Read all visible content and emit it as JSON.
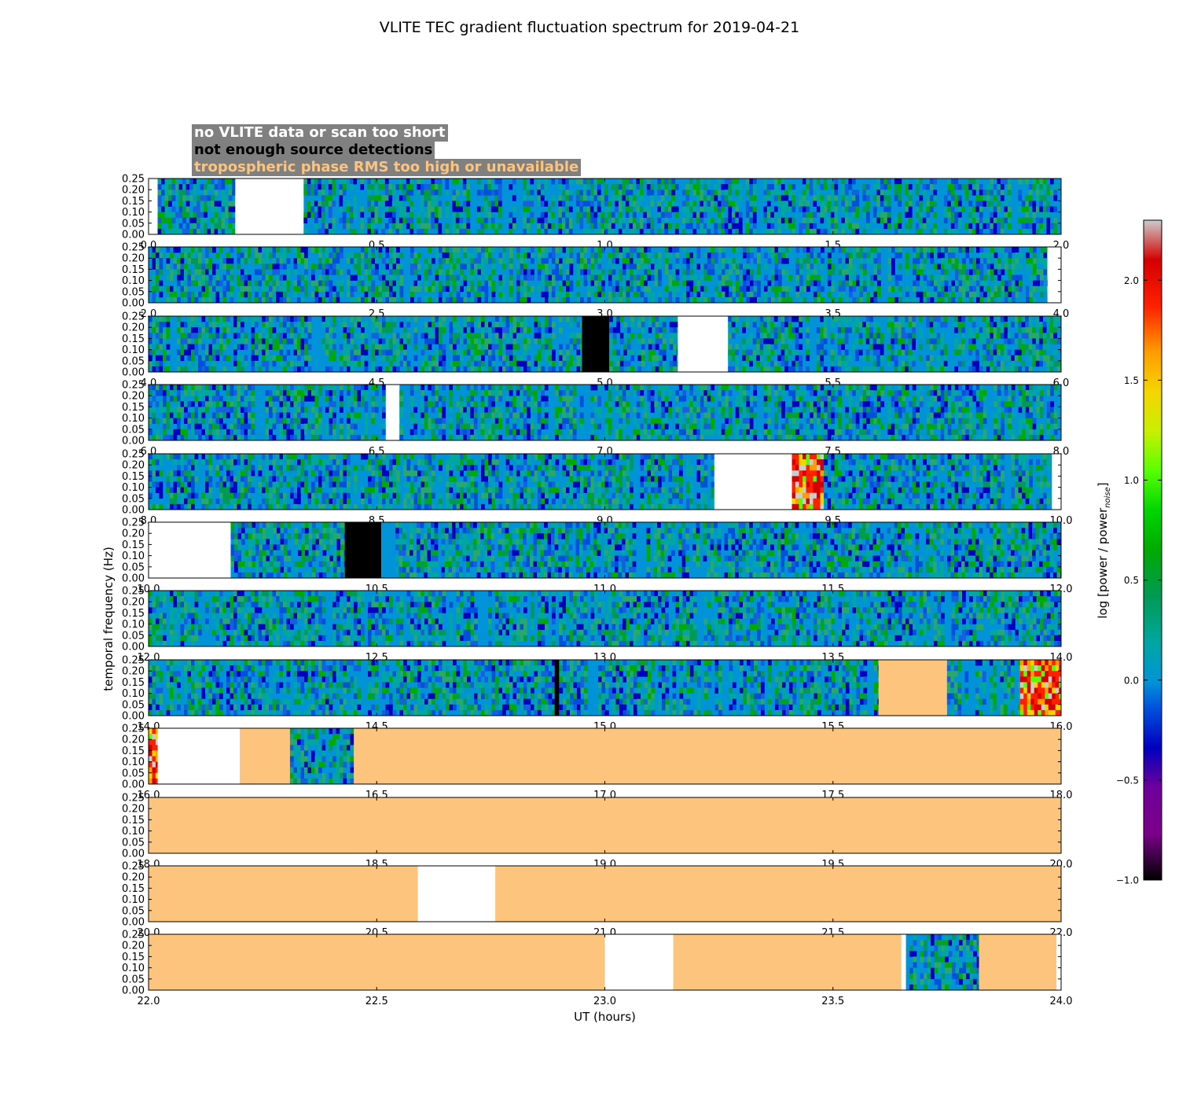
{
  "chart_data": {
    "type": "heatmap",
    "title": "VLITE TEC gradient fluctuation spectrum for 2019-04-21",
    "xlabel": "UT (hours)",
    "ylabel": "temporal frequency (Hz)",
    "ylim": [
      0.0,
      0.25
    ],
    "yticks": [
      "0.00",
      "0.05",
      "0.10",
      "0.15",
      "0.20",
      "0.25"
    ],
    "colorbar": {
      "label": "log [power / power",
      "label_subscript": "noise",
      "label_end": "]",
      "range": [
        -1.0,
        2.3
      ],
      "ticks": [
        "−1.0",
        "−0.5",
        "0.0",
        "0.5",
        "1.0",
        "1.5",
        "2.0"
      ],
      "tick_values": [
        -1.0,
        -0.5,
        0.0,
        0.5,
        1.0,
        1.5,
        2.0
      ]
    },
    "legend": [
      {
        "text": "no VLITE data or scan too short",
        "color": "#ffffff",
        "status": "white"
      },
      {
        "text": "not enough source detections",
        "color": "#000000",
        "status": "black"
      },
      {
        "text": "tropospheric phase RMS too high or unavailable",
        "color": "#fcc47c",
        "status": "orange"
      }
    ],
    "colors": {
      "baseline": "#0093d8",
      "white": "#ffffff",
      "black": "#000000",
      "orange": "#fcc47c"
    },
    "panels": [
      {
        "xlim": [
          0.0,
          2.0
        ],
        "xticks": [
          "0.0",
          "0.5",
          "1.0",
          "1.5",
          "2.0"
        ],
        "xtick_values": [
          0.0,
          0.5,
          1.0,
          1.5,
          2.0
        ],
        "segments": [
          [
            0.0,
            0.02,
            "white"
          ],
          [
            0.02,
            0.19,
            "data"
          ],
          [
            0.19,
            0.34,
            "white"
          ],
          [
            0.34,
            2.0,
            "data"
          ]
        ]
      },
      {
        "xlim": [
          2.0,
          4.0
        ],
        "xticks": [
          "2.0",
          "2.5",
          "3.0",
          "3.5",
          "4.0"
        ],
        "xtick_values": [
          2.0,
          2.5,
          3.0,
          3.5,
          4.0
        ],
        "segments": [
          [
            2.0,
            3.97,
            "data"
          ],
          [
            3.97,
            4.0,
            "white"
          ]
        ]
      },
      {
        "xlim": [
          4.0,
          6.0
        ],
        "xticks": [
          "4.0",
          "4.5",
          "5.0",
          "5.5",
          "6.0"
        ],
        "xtick_values": [
          4.0,
          4.5,
          5.0,
          5.5,
          6.0
        ],
        "segments": [
          [
            4.0,
            4.95,
            "data"
          ],
          [
            4.95,
            5.01,
            "black"
          ],
          [
            5.01,
            5.16,
            "data"
          ],
          [
            5.16,
            5.27,
            "white"
          ],
          [
            5.27,
            6.0,
            "data"
          ]
        ]
      },
      {
        "xlim": [
          6.0,
          8.0
        ],
        "xticks": [
          "6.0",
          "6.5",
          "7.0",
          "7.5",
          "8.0"
        ],
        "xtick_values": [
          6.0,
          6.5,
          7.0,
          7.5,
          8.0
        ],
        "segments": [
          [
            6.0,
            6.52,
            "data"
          ],
          [
            6.52,
            6.55,
            "white"
          ],
          [
            6.55,
            8.0,
            "data"
          ]
        ]
      },
      {
        "xlim": [
          8.0,
          10.0
        ],
        "xticks": [
          "8.0",
          "8.5",
          "9.0",
          "9.5",
          "10.0"
        ],
        "xtick_values": [
          8.0,
          8.5,
          9.0,
          9.5,
          10.0
        ],
        "segments": [
          [
            8.0,
            9.24,
            "data"
          ],
          [
            9.24,
            9.41,
            "white"
          ],
          [
            9.41,
            9.48,
            "hot"
          ],
          [
            9.48,
            9.98,
            "data"
          ],
          [
            9.98,
            10.0,
            "white"
          ]
        ]
      },
      {
        "xlim": [
          10.0,
          12.0
        ],
        "xticks": [
          "10.0",
          "10.5",
          "11.0",
          "11.5",
          "12.0"
        ],
        "xtick_values": [
          10.0,
          10.5,
          11.0,
          11.5,
          12.0
        ],
        "segments": [
          [
            10.0,
            10.18,
            "white"
          ],
          [
            10.18,
            10.43,
            "data"
          ],
          [
            10.43,
            10.51,
            "black"
          ],
          [
            10.51,
            12.0,
            "data"
          ]
        ]
      },
      {
        "xlim": [
          12.0,
          14.0
        ],
        "xticks": [
          "12.0",
          "12.5",
          "13.0",
          "13.5",
          "14.0"
        ],
        "xtick_values": [
          12.0,
          12.5,
          13.0,
          13.5,
          14.0
        ],
        "segments": [
          [
            12.0,
            14.0,
            "data"
          ]
        ]
      },
      {
        "xlim": [
          14.0,
          16.0
        ],
        "xticks": [
          "14.0",
          "14.5",
          "15.0",
          "15.5",
          "16.0"
        ],
        "xtick_values": [
          14.0,
          14.5,
          15.0,
          15.5,
          16.0
        ],
        "segments": [
          [
            14.0,
            14.89,
            "data"
          ],
          [
            14.89,
            14.9,
            "black"
          ],
          [
            14.9,
            15.6,
            "data"
          ],
          [
            15.6,
            15.75,
            "orange"
          ],
          [
            15.75,
            15.91,
            "data"
          ],
          [
            15.91,
            16.0,
            "hot"
          ]
        ]
      },
      {
        "xlim": [
          16.0,
          18.0
        ],
        "xticks": [
          "16.0",
          "16.5",
          "17.0",
          "17.5",
          "18.0"
        ],
        "xtick_values": [
          16.0,
          16.5,
          17.0,
          17.5,
          18.0
        ],
        "segments": [
          [
            16.0,
            16.02,
            "hot"
          ],
          [
            16.02,
            16.2,
            "white"
          ],
          [
            16.2,
            16.31,
            "orange"
          ],
          [
            16.31,
            16.45,
            "data"
          ],
          [
            16.45,
            18.0,
            "orange"
          ]
        ]
      },
      {
        "xlim": [
          18.0,
          20.0
        ],
        "xticks": [
          "18.0",
          "18.5",
          "19.0",
          "19.5",
          "20.0"
        ],
        "xtick_values": [
          18.0,
          18.5,
          19.0,
          19.5,
          20.0
        ],
        "segments": [
          [
            18.0,
            20.0,
            "orange"
          ]
        ]
      },
      {
        "xlim": [
          20.0,
          22.0
        ],
        "xticks": [
          "20.0",
          "20.5",
          "21.0",
          "21.5",
          "22.0"
        ],
        "xtick_values": [
          20.0,
          20.5,
          21.0,
          21.5,
          22.0
        ],
        "segments": [
          [
            20.0,
            20.59,
            "orange"
          ],
          [
            20.59,
            20.76,
            "white"
          ],
          [
            20.76,
            22.0,
            "orange"
          ]
        ]
      },
      {
        "xlim": [
          22.0,
          24.0
        ],
        "xticks": [
          "22.0",
          "22.5",
          "23.0",
          "23.5",
          "24.0"
        ],
        "xtick_values": [
          22.0,
          22.5,
          23.0,
          23.5,
          24.0
        ],
        "segments": [
          [
            22.0,
            23.0,
            "orange"
          ],
          [
            23.0,
            23.15,
            "white"
          ],
          [
            23.15,
            23.65,
            "orange"
          ],
          [
            23.65,
            23.66,
            "white"
          ],
          [
            23.66,
            23.82,
            "data"
          ],
          [
            23.82,
            23.99,
            "orange"
          ],
          [
            23.99,
            24.0,
            "white"
          ]
        ]
      }
    ]
  }
}
